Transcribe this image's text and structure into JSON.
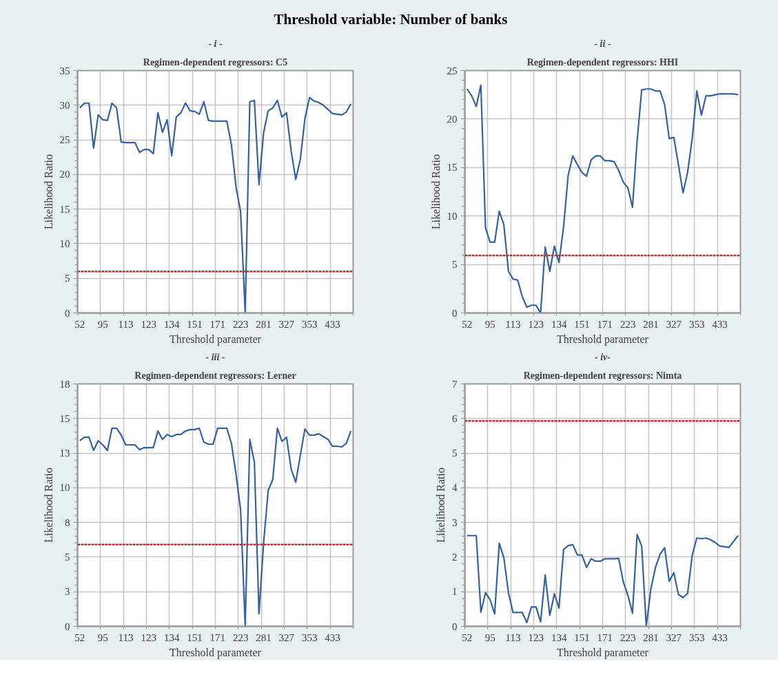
{
  "chart_data": [
    {
      "type": "line",
      "title": "- i -",
      "subtitle": "Regimen-dependent regressors: C5",
      "xlabel": "Threshold parameter",
      "ylabel": "Likelihood Ratio",
      "annotations": [
        "Threshold variable: Number of banks"
      ],
      "categories": [
        "52",
        null,
        null,
        null,
        null,
        "95",
        null,
        null,
        null,
        null,
        "113",
        null,
        null,
        null,
        null,
        "123",
        null,
        null,
        null,
        null,
        "134",
        null,
        null,
        null,
        null,
        "151",
        null,
        null,
        null,
        null,
        "171",
        null,
        null,
        null,
        null,
        "223",
        null,
        null,
        null,
        null,
        "281",
        null,
        null,
        null,
        null,
        "327",
        null,
        null,
        null,
        null,
        "353",
        null,
        null,
        null,
        null,
        "433",
        null,
        null,
        null,
        null
      ],
      "series": [
        {
          "color": "#37619b",
          "values": [
            29.6,
            30.3,
            30.3,
            23.8,
            28.6,
            27.9,
            27.8,
            30.3,
            29.6,
            24.7,
            24.6,
            24.6,
            24.6,
            23.2,
            23.6,
            23.6,
            23.0,
            28.9,
            26.1,
            27.9,
            22.7,
            28.3,
            28.9,
            30.3,
            29.2,
            29.1,
            28.7,
            30.5,
            27.8,
            27.7,
            27.7,
            27.7,
            27.7,
            24.3,
            18.2,
            14.6,
            0,
            30.5,
            30.7,
            18.5,
            26.0,
            29.2,
            29.6,
            30.7,
            28.3,
            28.9,
            23.4,
            19.3,
            22.2,
            28.1,
            31.1,
            30.6,
            30.4,
            30.0,
            29.4,
            28.8,
            28.7,
            28.6,
            29.0,
            30.2
          ]
        }
      ],
      "ylim": [
        0,
        35
      ],
      "yticks": [
        0,
        5,
        10,
        15,
        20,
        25,
        30,
        35
      ],
      "grid": true,
      "ref_lines": [
        {
          "axis": "y",
          "value": 5.99,
          "color": "#a93a3a",
          "line_style": "dashed"
        }
      ]
    },
    {
      "type": "line",
      "title": "- ii -",
      "subtitle": "Regimen-dependent regressors: HHI",
      "xlabel": "Threshold parameter",
      "ylabel": "Likelihood Ratio",
      "categories": [
        "52",
        null,
        null,
        null,
        null,
        "95",
        null,
        null,
        null,
        null,
        "113",
        null,
        null,
        null,
        null,
        "123",
        null,
        null,
        null,
        null,
        "134",
        null,
        null,
        null,
        null,
        "151",
        null,
        null,
        null,
        null,
        "171",
        null,
        null,
        null,
        null,
        "223",
        null,
        null,
        null,
        null,
        "281",
        null,
        null,
        null,
        null,
        "327",
        null,
        null,
        null,
        null,
        "353",
        null,
        null,
        null,
        null,
        "433",
        null,
        null,
        null,
        null
      ],
      "series": [
        {
          "color": "#37619b",
          "values": [
            23.1,
            22.4,
            21.3,
            23.5,
            8.8,
            7.3,
            7.3,
            10.5,
            9.1,
            4.3,
            3.5,
            3.4,
            1.7,
            0.6,
            0.8,
            0.8,
            0,
            6.8,
            4.3,
            6.9,
            5.2,
            8.9,
            14.2,
            16.2,
            15.3,
            14.5,
            14.1,
            15.8,
            16.2,
            16.2,
            15.7,
            15.7,
            15.6,
            14.7,
            13.5,
            12.9,
            10.9,
            17.7,
            23.0,
            23.1,
            23.1,
            22.9,
            22.9,
            21.5,
            18.0,
            18.1,
            15.3,
            12.4,
            14.5,
            18.0,
            22.9,
            20.4,
            22.4,
            22.4,
            22.5,
            22.6,
            22.6,
            22.6,
            22.6,
            22.5
          ]
        }
      ],
      "ylim": [
        0,
        25
      ],
      "yticks": [
        0,
        5,
        10,
        15,
        20,
        25
      ],
      "grid": true,
      "ref_lines": [
        {
          "axis": "y",
          "value": 5.93,
          "color": "#a93a3a",
          "line_style": "dashed"
        }
      ]
    },
    {
      "type": "line",
      "title": "- iii -",
      "subtitle": "Regimen-dependent regressors: Lerner",
      "xlabel": "Threshold parameter",
      "ylabel": "Likelihood Ratio",
      "categories": [
        "52",
        null,
        null,
        null,
        null,
        "95",
        null,
        null,
        null,
        null,
        "113",
        null,
        null,
        null,
        null,
        "123",
        null,
        null,
        null,
        null,
        "134",
        null,
        null,
        null,
        null,
        "151",
        null,
        null,
        null,
        null,
        "171",
        null,
        null,
        null,
        null,
        "223",
        null,
        null,
        null,
        null,
        "281",
        null,
        null,
        null,
        null,
        "327",
        null,
        null,
        null,
        null,
        "353",
        null,
        null,
        null,
        null,
        "433",
        null,
        null,
        null,
        null
      ],
      "series": [
        {
          "color": "#37619b",
          "values": [
            13.4,
            13.65,
            13.65,
            12.7,
            13.4,
            13.1,
            12.7,
            14.3,
            14.3,
            13.8,
            13.1,
            13.1,
            13.1,
            12.75,
            12.9,
            12.9,
            12.9,
            14.1,
            13.5,
            13.85,
            13.7,
            13.85,
            13.85,
            14.1,
            14.2,
            14.2,
            14.3,
            13.3,
            13.15,
            13.15,
            14.3,
            14.3,
            14.3,
            13.2,
            11.0,
            8.4,
            0,
            13.5,
            11.85,
            0.9,
            6.0,
            9.8,
            10.6,
            14.3,
            13.35,
            13.65,
            11.35,
            10.4,
            12.35,
            14.25,
            13.8,
            13.8,
            13.9,
            13.7,
            13.5,
            13.0,
            13.0,
            12.95,
            13.2,
            14.1
          ]
        }
      ],
      "ylim": [
        0,
        17.5
      ],
      "yticks": [
        0,
        {
          "value": 2.5,
          "label": "3"
        },
        5,
        {
          "value": 7.5,
          "label": "8"
        },
        10,
        {
          "value": 12.5,
          "label": "13"
        },
        15,
        {
          "value": 17.5,
          "label": "18"
        }
      ],
      "grid": true,
      "ref_lines": [
        {
          "axis": "y",
          "value": 5.9,
          "color": "#a93a3a",
          "line_style": "dashed"
        }
      ]
    },
    {
      "type": "line",
      "title": "- iv-",
      "subtitle": "Regimen-dependent regressors: Nimta",
      "xlabel": "Threshold parameter",
      "ylabel": "Likelihood Ratio",
      "categories": [
        "52",
        null,
        null,
        null,
        null,
        "95",
        null,
        null,
        null,
        null,
        "113",
        null,
        null,
        null,
        null,
        "123",
        null,
        null,
        null,
        null,
        "134",
        null,
        null,
        null,
        null,
        "151",
        null,
        null,
        null,
        null,
        "171",
        null,
        null,
        null,
        null,
        "223",
        null,
        null,
        null,
        null,
        "281",
        null,
        null,
        null,
        null,
        "327",
        null,
        null,
        null,
        null,
        "353",
        null,
        null,
        null,
        null,
        "433",
        null,
        null,
        null,
        null
      ],
      "series": [
        {
          "color": "#37619b",
          "values": [
            2.62,
            2.62,
            2.62,
            0.41,
            0.97,
            0.77,
            0.36,
            2.4,
            1.98,
            0.97,
            0.4,
            0.4,
            0.4,
            0.11,
            0.56,
            0.56,
            0.13,
            1.48,
            0.32,
            0.94,
            0.53,
            2.22,
            2.33,
            2.36,
            2.06,
            2.06,
            1.7,
            1.95,
            1.88,
            1.88,
            1.95,
            1.95,
            1.95,
            1.96,
            1.28,
            0.9,
            0.38,
            2.65,
            2.32,
            0,
            1.08,
            1.7,
            2.08,
            2.27,
            1.3,
            1.55,
            0.92,
            0.83,
            0.95,
            2.05,
            2.55,
            2.53,
            2.55,
            2.5,
            2.42,
            2.32,
            2.3,
            2.28,
            2.45,
            2.62
          ]
        }
      ],
      "ylim": [
        0,
        7
      ],
      "yticks": [
        0,
        1,
        2,
        3,
        4,
        5,
        6,
        7
      ],
      "grid": true,
      "ref_lines": [
        {
          "axis": "y",
          "value": 5.93,
          "color": "#a93a3a",
          "line_style": "dashed"
        }
      ]
    }
  ]
}
